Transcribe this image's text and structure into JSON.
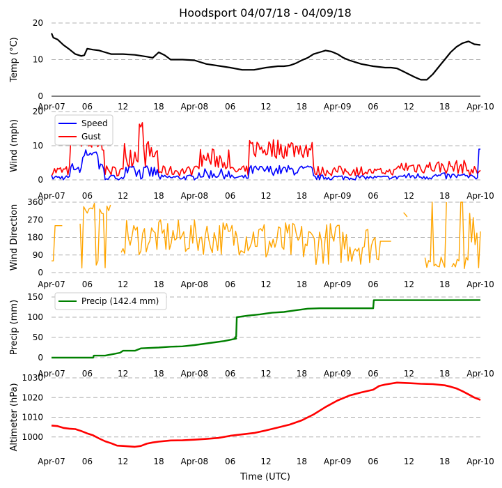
{
  "figure": {
    "title": "Hoodsport 04/07/18 - 04/09/18",
    "xlabel": "Time (UTC)",
    "x_ticks": [
      "Apr-07",
      "06",
      "12",
      "18",
      "Apr-08",
      "06",
      "12",
      "18",
      "Apr-09",
      "06",
      "12",
      "18",
      "Apr-10"
    ]
  },
  "colors": {
    "temp": "#000000",
    "speed": "#0000ff",
    "gust": "#ff0000",
    "direction": "#ffa500",
    "precip": "#008000",
    "altimeter": "#ff0000",
    "grid": "#b0b0b0"
  },
  "chart_data": [
    {
      "type": "line",
      "ylabel": "Temp ($^\\circ$C)",
      "ylabel_display": "Temp (°C)",
      "ylim": [
        0,
        20
      ],
      "yticks": [
        0,
        10,
        20
      ],
      "xlim_hours": [
        0,
        72
      ],
      "series": [
        {
          "name": "Temp",
          "x": [
            0,
            0.3,
            1,
            2,
            3,
            4,
            5,
            5.5,
            6,
            7,
            8,
            9,
            10,
            12,
            14,
            16,
            17,
            18,
            19,
            20,
            22,
            24,
            26,
            28,
            30,
            32,
            33,
            34,
            36,
            38,
            39,
            40,
            41,
            42,
            43,
            44,
            45,
            46,
            47,
            48,
            49,
            50,
            52,
            54,
            56,
            57,
            58,
            59,
            60,
            61,
            62,
            63,
            64,
            65,
            66,
            67,
            68,
            69,
            70,
            71,
            72
          ],
          "values": [
            17.2,
            16,
            15.5,
            14,
            12.8,
            11.5,
            11,
            11.2,
            13,
            12.7,
            12.5,
            12,
            11.5,
            11.5,
            11.3,
            10.8,
            10.5,
            12,
            11.2,
            10,
            10,
            9.8,
            8.8,
            8.3,
            7.8,
            7.2,
            7.2,
            7.2,
            7.8,
            8.2,
            8.2,
            8.4,
            9,
            9.8,
            10.5,
            11.5,
            12,
            12.5,
            12.2,
            11.5,
            10.5,
            9.8,
            8.8,
            8.2,
            7.8,
            7.8,
            7.6,
            6.8,
            6,
            5.2,
            4.5,
            4.5,
            6,
            8,
            10,
            12,
            13.5,
            14.5,
            15,
            14.2,
            14
          ]
        }
      ]
    },
    {
      "type": "line",
      "ylabel": "Wind (mph)",
      "ylim": [
        0,
        20
      ],
      "yticks": [
        0,
        10,
        20
      ],
      "xlim_hours": [
        0,
        72
      ],
      "legend": "upper-left",
      "series": [
        {
          "name": "Speed",
          "summary": "mostly 0-5 mph; peak ~9 mph near Apr-07 06 and ~9 mph at end"
        },
        {
          "name": "Gust",
          "summary": "mostly 2-10 mph; peaks ~17 mph near Apr-07 06 and Apr-07 15"
        }
      ]
    },
    {
      "type": "line",
      "ylabel": "Wind Direction",
      "ylim": [
        0,
        360
      ],
      "yticks": [
        0,
        90,
        180,
        270,
        360
      ],
      "xlim_hours": [
        0,
        72
      ],
      "series": [
        {
          "name": "Direction",
          "summary": "highly variable 20-360 degrees; gaps where calm"
        }
      ]
    },
    {
      "type": "line",
      "ylabel": "Precip (mm)",
      "ylim": [
        0,
        150
      ],
      "yticks": [
        0,
        50,
        100,
        150
      ],
      "xlim_hours": [
        0,
        72
      ],
      "legend": "upper-left",
      "series": [
        {
          "name": "Precip (142.4 mm)",
          "x": [
            0,
            7,
            7.1,
            9,
            11.5,
            12,
            14,
            15,
            18,
            20,
            22,
            24,
            27,
            29,
            31,
            30.8,
            31.0,
            31.1,
            33,
            35,
            37,
            39,
            41,
            43,
            45,
            48,
            50,
            52,
            54,
            54.1,
            57,
            60,
            65,
            72
          ],
          "values": [
            0,
            0,
            5,
            5,
            12,
            17,
            17,
            23,
            25,
            27,
            28,
            31,
            37,
            41,
            47,
            50,
            52,
            100,
            104,
            107,
            111,
            113,
            117,
            121,
            122,
            122,
            122,
            122,
            122,
            142,
            142,
            142,
            142,
            142.4
          ]
        }
      ]
    },
    {
      "type": "line",
      "ylabel": "Altimeter (hPa)",
      "ylim": [
        990,
        1030
      ],
      "yticks": [
        1000,
        1010,
        1020,
        1030
      ],
      "xlim_hours": [
        0,
        72
      ],
      "series": [
        {
          "name": "Altimeter",
          "x": [
            0,
            1,
            2,
            3,
            4,
            5,
            6,
            7,
            8,
            9,
            10,
            11,
            12,
            13,
            14,
            15,
            16,
            17,
            18,
            20,
            22,
            24,
            26,
            28,
            30,
            32,
            34,
            36,
            38,
            40,
            42,
            44,
            46,
            48,
            50,
            52,
            54,
            55,
            56,
            58,
            60,
            62,
            64,
            66,
            67,
            68,
            69,
            70,
            71,
            72
          ],
          "values": [
            1005.8,
            1005.5,
            1004.6,
            1004.2,
            1004.0,
            1003.0,
            1001.8,
            1000.8,
            999.2,
            997.8,
            996.8,
            995.6,
            995.4,
            995.2,
            995.0,
            995.4,
            996.6,
            997.2,
            997.6,
            998.2,
            998.3,
            998.6,
            999.0,
            999.5,
            1000.6,
            1001.3,
            1002.0,
            1003.3,
            1004.8,
            1006.3,
            1008.4,
            1011.4,
            1015.2,
            1018.5,
            1021.0,
            1022.6,
            1024.0,
            1025.9,
            1026.6,
            1027.6,
            1027.3,
            1027.0,
            1026.8,
            1026.2,
            1025.5,
            1024.6,
            1023.2,
            1021.6,
            1020.0,
            1018.8
          ]
        }
      ]
    }
  ]
}
